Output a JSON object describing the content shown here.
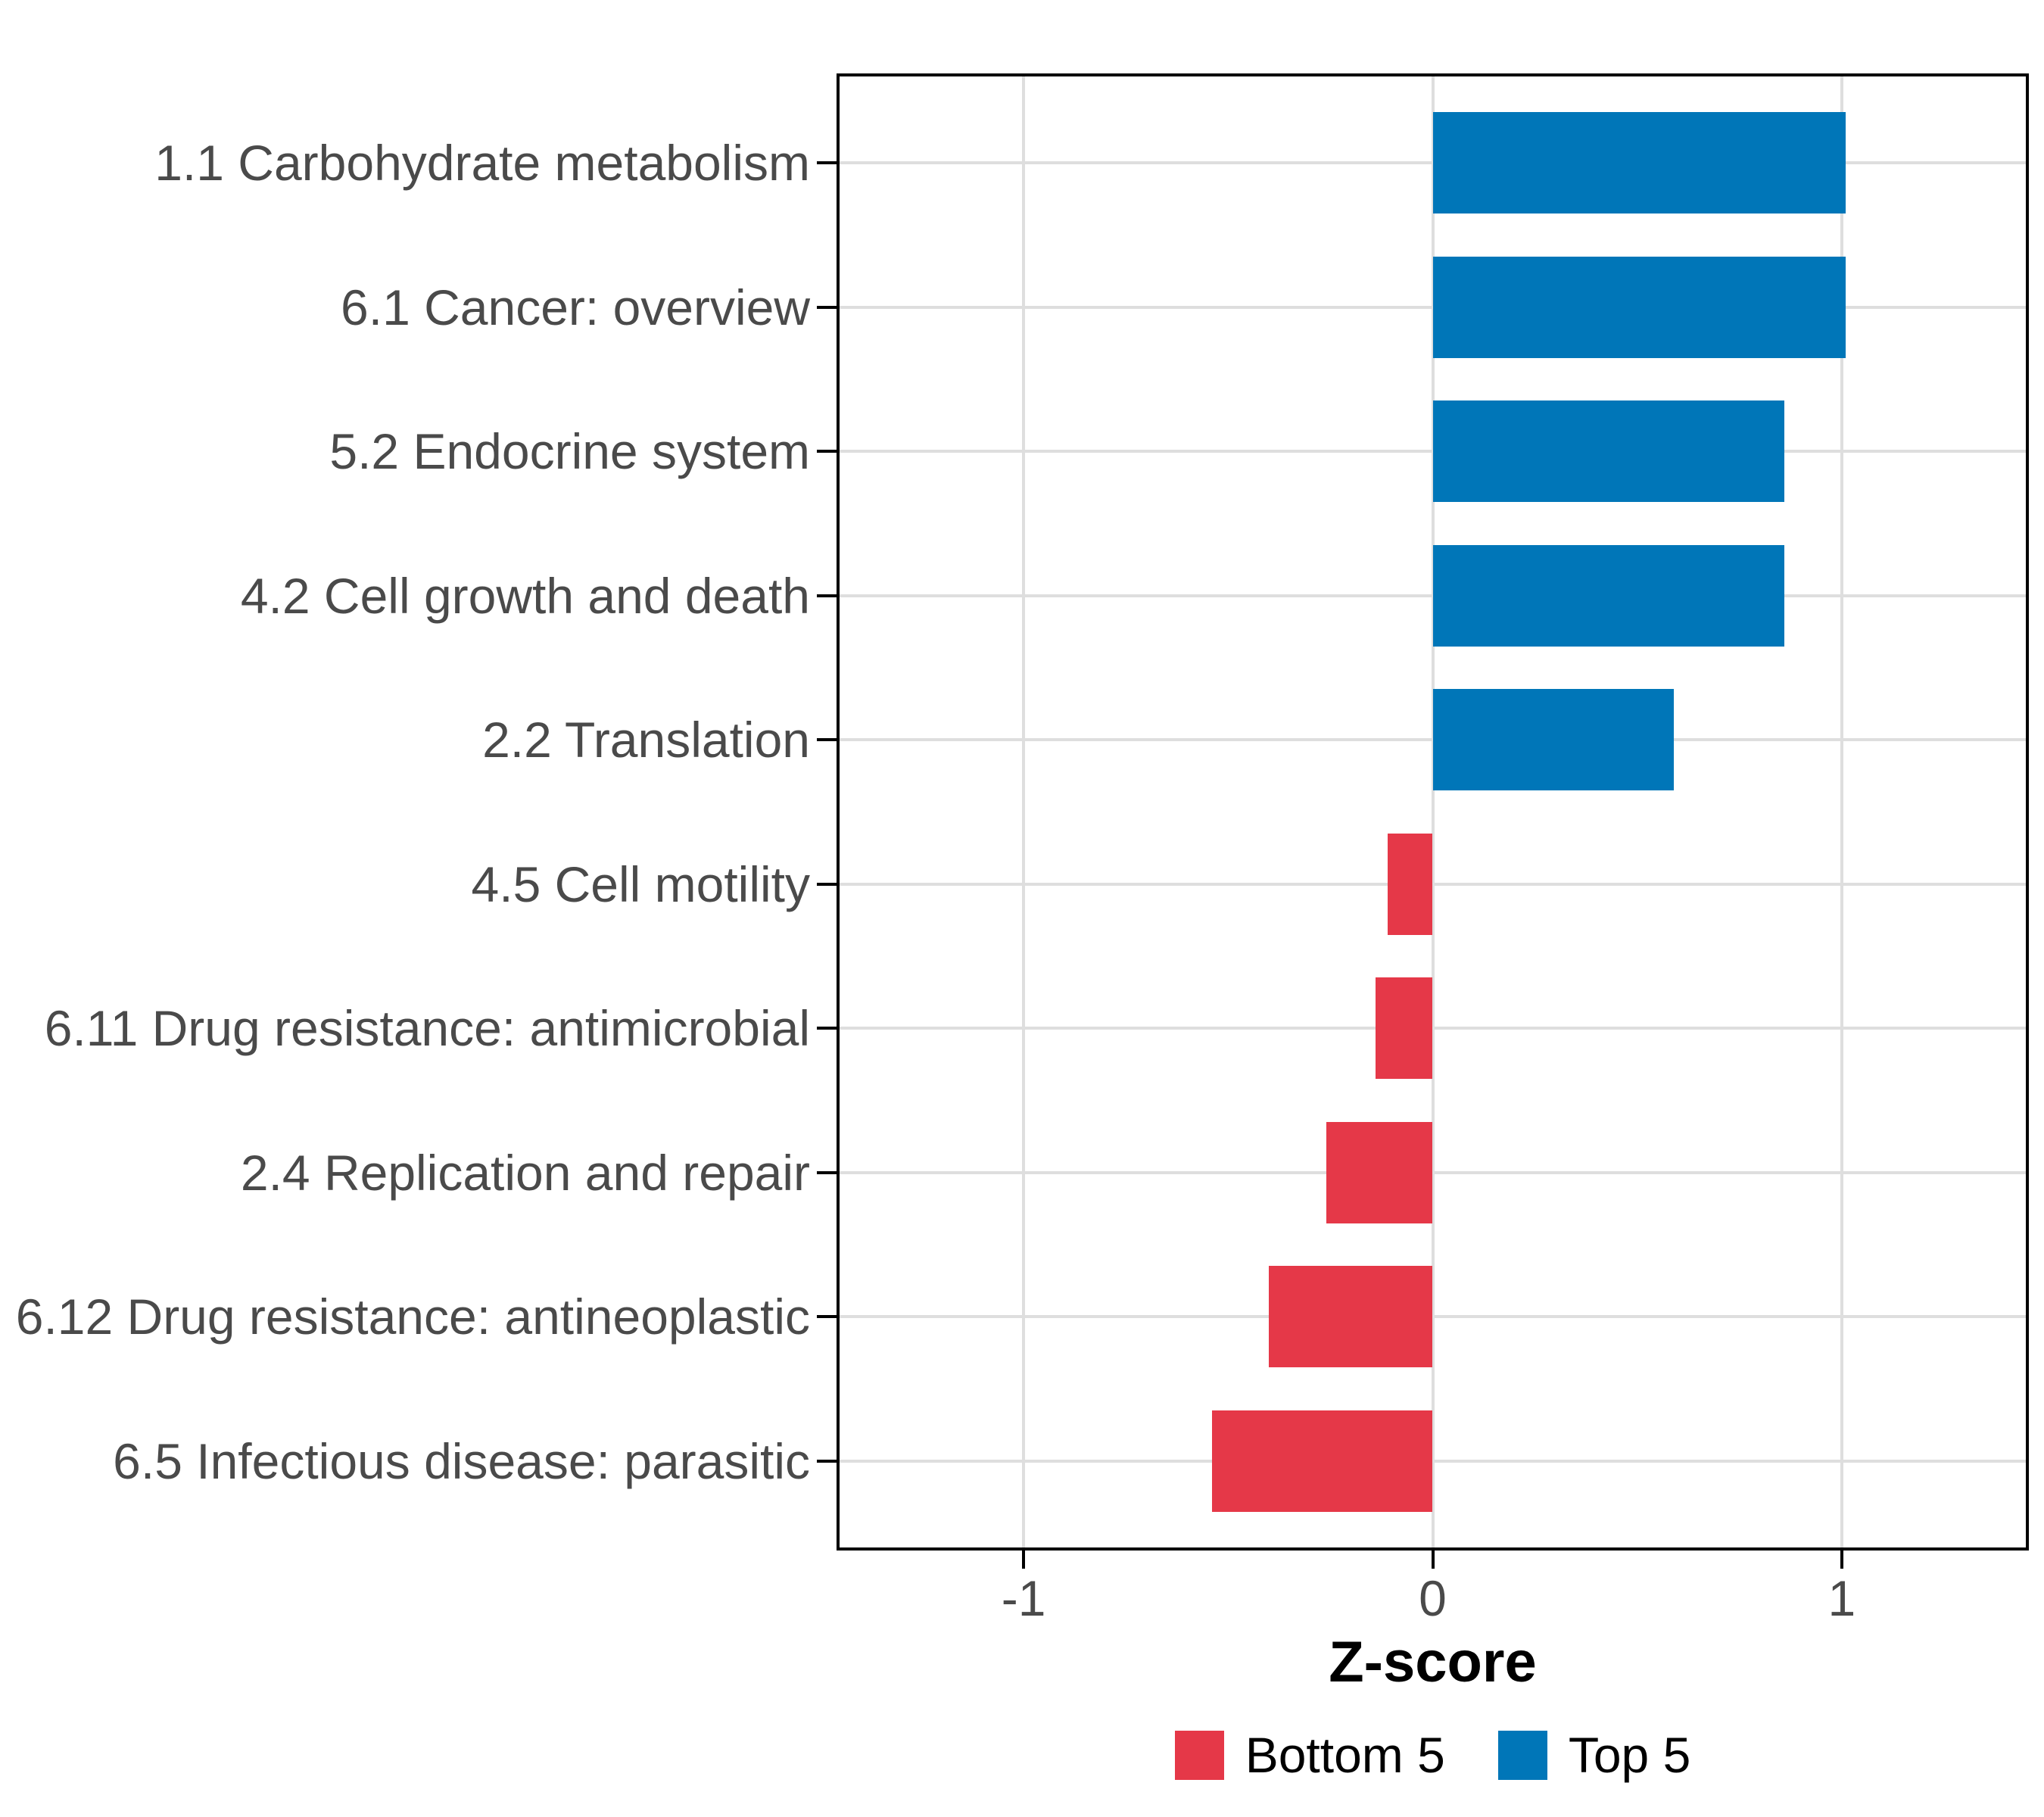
{
  "chart_data": {
    "type": "bar",
    "orientation": "horizontal",
    "title": "",
    "xlabel": "Z-score",
    "ylabel": "",
    "categories": [
      "1.1 Carbohydrate metabolism",
      "6.1 Cancer: overview",
      "5.2 Endocrine system",
      "4.2 Cell growth and death",
      "2.2 Translation",
      "4.5 Cell motility",
      "6.11 Drug resistance: antimicrobial",
      "2.4 Replication and repair",
      "6.12 Drug resistance: antineoplastic",
      "6.5 Infectious disease: parasitic"
    ],
    "series": [
      {
        "name": "Z-score",
        "values": [
          1.01,
          1.01,
          0.86,
          0.86,
          0.59,
          -0.11,
          -0.14,
          -0.26,
          -0.4,
          -0.54
        ],
        "groups": [
          "Top 5",
          "Top 5",
          "Top 5",
          "Top 5",
          "Top 5",
          "Bottom 5",
          "Bottom 5",
          "Bottom 5",
          "Bottom 5",
          "Bottom 5"
        ]
      }
    ],
    "xlim": [
      -1.45,
      1.45
    ],
    "x_ticks": [
      {
        "value": -1,
        "label": "-1"
      },
      {
        "value": 0,
        "label": "0"
      },
      {
        "value": 1,
        "label": "1"
      }
    ],
    "grid": true,
    "legend": {
      "position": "bottom",
      "entries": [
        {
          "label": "Bottom 5",
          "color": "#E53848"
        },
        {
          "label": "Top 5",
          "color": "#0076B8"
        }
      ]
    },
    "colors": {
      "Bottom 5": "#E53848",
      "Top 5": "#0076B8",
      "grid": "#DEDEDE",
      "axis_text": "#4A4A4A",
      "panel_border": "#000000"
    }
  }
}
